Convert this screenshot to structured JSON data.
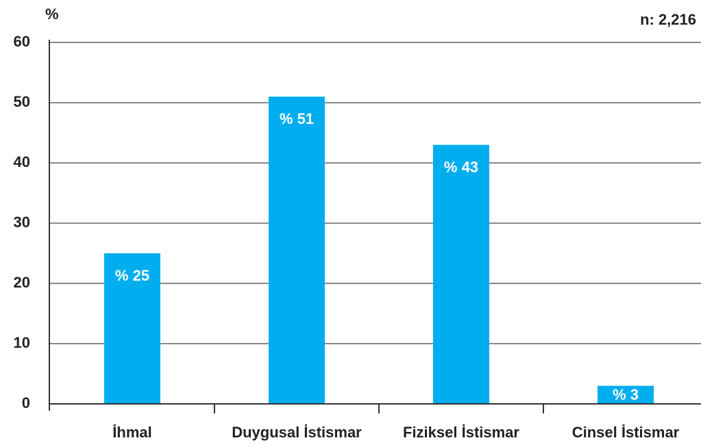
{
  "chart_data": {
    "type": "bar",
    "y_label": "%",
    "annotation": "n: 2,216",
    "categories": [
      "İhmal",
      "Duygusal İstismar",
      "Fiziksel İstismar",
      "Cinsel İstismar"
    ],
    "values": [
      25,
      51,
      43,
      3
    ],
    "value_labels": [
      "% 25",
      "% 51",
      "% 43",
      "% 3"
    ],
    "color": "#00aeef",
    "ylim": [
      0,
      60
    ],
    "yticks": [
      0,
      10,
      20,
      30,
      40,
      50,
      60
    ],
    "grid": true
  }
}
